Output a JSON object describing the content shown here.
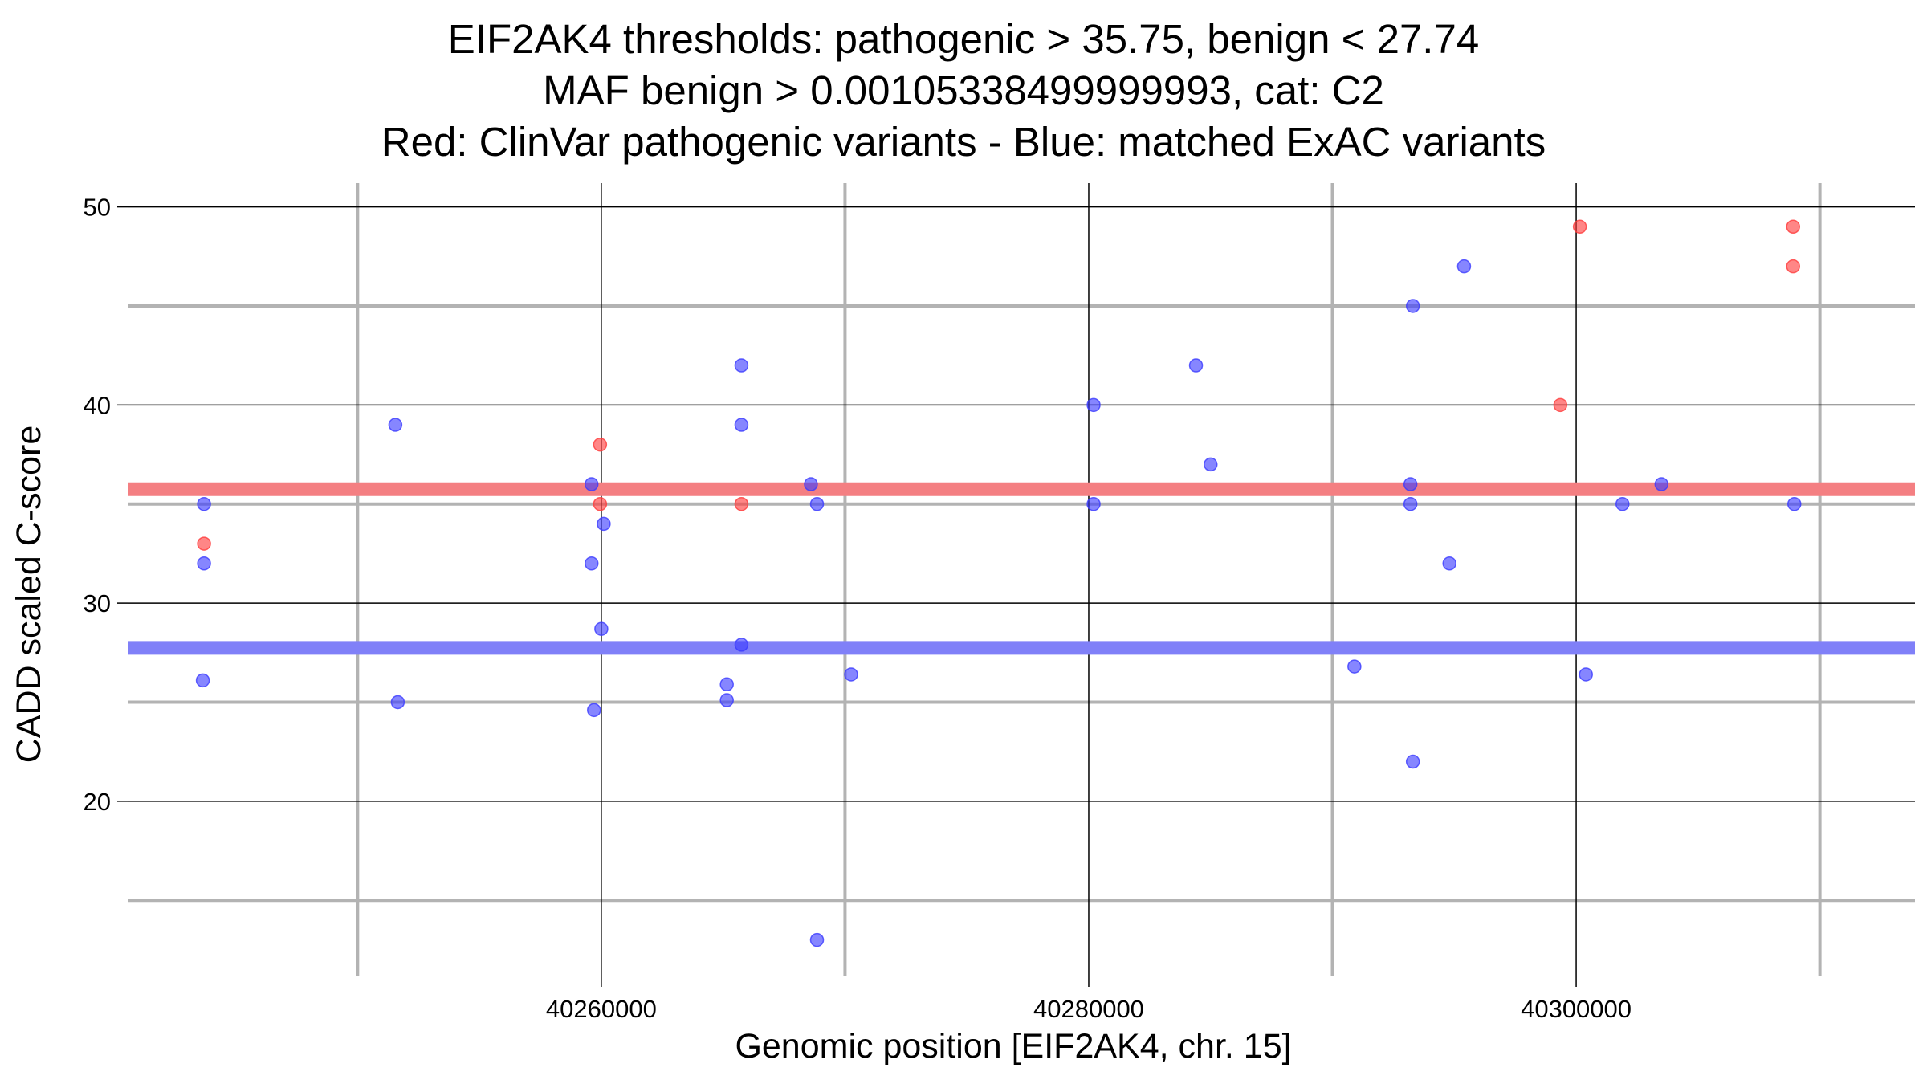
{
  "chart_data": {
    "type": "scatter",
    "title_lines": [
      "EIF2AK4 thresholds: pathogenic > 35.75, benign < 27.74",
      "MAF benign > 0.00105338499999993, cat: C2",
      "Red: ClinVar pathogenic variants - Blue: matched ExAC variants"
    ],
    "xlabel": "Genomic position [EIF2AK4, chr. 15]",
    "ylabel": "CADD scaled C-score",
    "xlim": [
      40240600,
      40313900
    ],
    "ylim": [
      11.2,
      51.2
    ],
    "x_ticks": [
      40260000,
      40280000,
      40300000
    ],
    "x_tick_labels": [
      "40260000",
      "40280000",
      "40300000"
    ],
    "x_minor_gridlines": [
      40250000,
      40270000,
      40290000,
      40310000
    ],
    "y_ticks": [
      20,
      30,
      40,
      50
    ],
    "y_tick_labels": [
      "20",
      "30",
      "40",
      "50"
    ],
    "y_minor_gridlines": [
      15,
      25,
      35,
      45
    ],
    "grid": true,
    "thresholds": [
      {
        "name": "pathogenic",
        "value": 35.75,
        "color": "#f47f82"
      },
      {
        "name": "benign",
        "value": 27.74,
        "color": "#8080f8"
      }
    ],
    "series": [
      {
        "color": "#ff3b3b",
        "points": [
          {
            "x": 40243700,
            "y": 33
          },
          {
            "x": 40259950,
            "y": 38
          },
          {
            "x": 40259950,
            "y": 35
          },
          {
            "x": 40265750,
            "y": 35
          },
          {
            "x": 40299350,
            "y": 40
          },
          {
            "x": 40300150,
            "y": 49
          },
          {
            "x": 40308900,
            "y": 49
          },
          {
            "x": 40308900,
            "y": 47
          }
        ]
      },
      {
        "color": "#3b3bff",
        "points": [
          {
            "x": 40243700,
            "y": 35
          },
          {
            "x": 40243700,
            "y": 32
          },
          {
            "x": 40243650,
            "y": 26.1
          },
          {
            "x": 40251550,
            "y": 39
          },
          {
            "x": 40251650,
            "y": 25
          },
          {
            "x": 40259600,
            "y": 36
          },
          {
            "x": 40259600,
            "y": 32
          },
          {
            "x": 40260100,
            "y": 34
          },
          {
            "x": 40259700,
            "y": 24.6
          },
          {
            "x": 40260000,
            "y": 28.7
          },
          {
            "x": 40265750,
            "y": 42
          },
          {
            "x": 40265750,
            "y": 39
          },
          {
            "x": 40265150,
            "y": 25.9
          },
          {
            "x": 40265150,
            "y": 25.1
          },
          {
            "x": 40265750,
            "y": 27.9
          },
          {
            "x": 40268600,
            "y": 36
          },
          {
            "x": 40268850,
            "y": 35
          },
          {
            "x": 40270250,
            "y": 26.4
          },
          {
            "x": 40268850,
            "y": 13
          },
          {
            "x": 40280200,
            "y": 40
          },
          {
            "x": 40280200,
            "y": 35
          },
          {
            "x": 40284400,
            "y": 42
          },
          {
            "x": 40285000,
            "y": 37
          },
          {
            "x": 40290900,
            "y": 26.8
          },
          {
            "x": 40293300,
            "y": 45
          },
          {
            "x": 40293200,
            "y": 36
          },
          {
            "x": 40293200,
            "y": 35
          },
          {
            "x": 40293300,
            "y": 22
          },
          {
            "x": 40295400,
            "y": 47
          },
          {
            "x": 40294800,
            "y": 32
          },
          {
            "x": 40300400,
            "y": 26.4
          },
          {
            "x": 40301900,
            "y": 35
          },
          {
            "x": 40303500,
            "y": 36
          },
          {
            "x": 40308950,
            "y": 35
          }
        ]
      }
    ]
  }
}
